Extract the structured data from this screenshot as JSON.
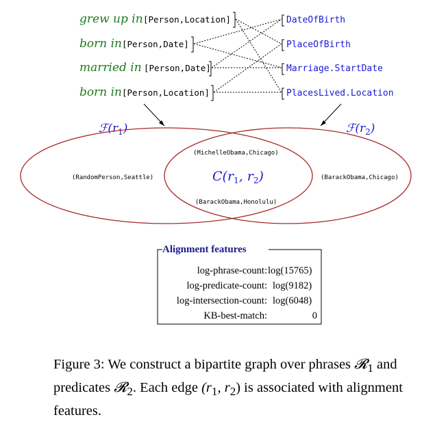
{
  "figure": {
    "phrases": [
      {
        "relation": "grew up in",
        "args": "[Person,Location]"
      },
      {
        "relation": "born in",
        "args": "[Person,Date]"
      },
      {
        "relation": "married in",
        "args": "[Person,Date]"
      },
      {
        "relation": "born in",
        "args": "[Person,Location]"
      }
    ],
    "predicates": [
      "DateOfBirth",
      "PlaceOfBirth",
      "Marriage.StartDate",
      "PlacesLived.Location"
    ],
    "edges": [
      [
        0,
        1
      ],
      [
        0,
        3
      ],
      [
        1,
        0
      ],
      [
        1,
        2
      ],
      [
        2,
        0
      ],
      [
        2,
        2
      ],
      [
        3,
        1
      ],
      [
        3,
        3
      ]
    ],
    "sets": {
      "left_label": "ℱ(r",
      "left_sub": "1",
      "right_label": "ℱ(r",
      "right_sub": "2",
      "center_label": "C(r",
      "center_sub1": "1",
      "center_mid": ", r",
      "center_sub2": "2",
      "left_only": "(RandomPerson,Seattle)",
      "right_only": "(BarackObama,Chicago)",
      "intersection_top": "(MichelleObama,Chicago)",
      "intersection_bottom": "(BarackObama,Honolulu)"
    },
    "alignment_features": {
      "title": "Alignment features",
      "rows": [
        {
          "name": "log-phrase-count:",
          "value": "log(15765)"
        },
        {
          "name": "log-predicate-count:",
          "value": "log(9182)"
        },
        {
          "name": "log-intersection-count:",
          "value": "log(6048)"
        },
        {
          "name": "KB-best-match:",
          "value": "0"
        }
      ]
    }
  },
  "caption": {
    "t1": "Figure 3: We construct a bipartite graph over phrases ",
    "R": "𝓡",
    "s1": "1",
    "t2": " and predicates ",
    "s2": "2",
    "t3": ". Each edge ",
    "edge_math": "(r",
    "e_s1": "1",
    "e_mid": ", r",
    "e_s2": "2",
    "t4": ") is associated with alignment features."
  }
}
